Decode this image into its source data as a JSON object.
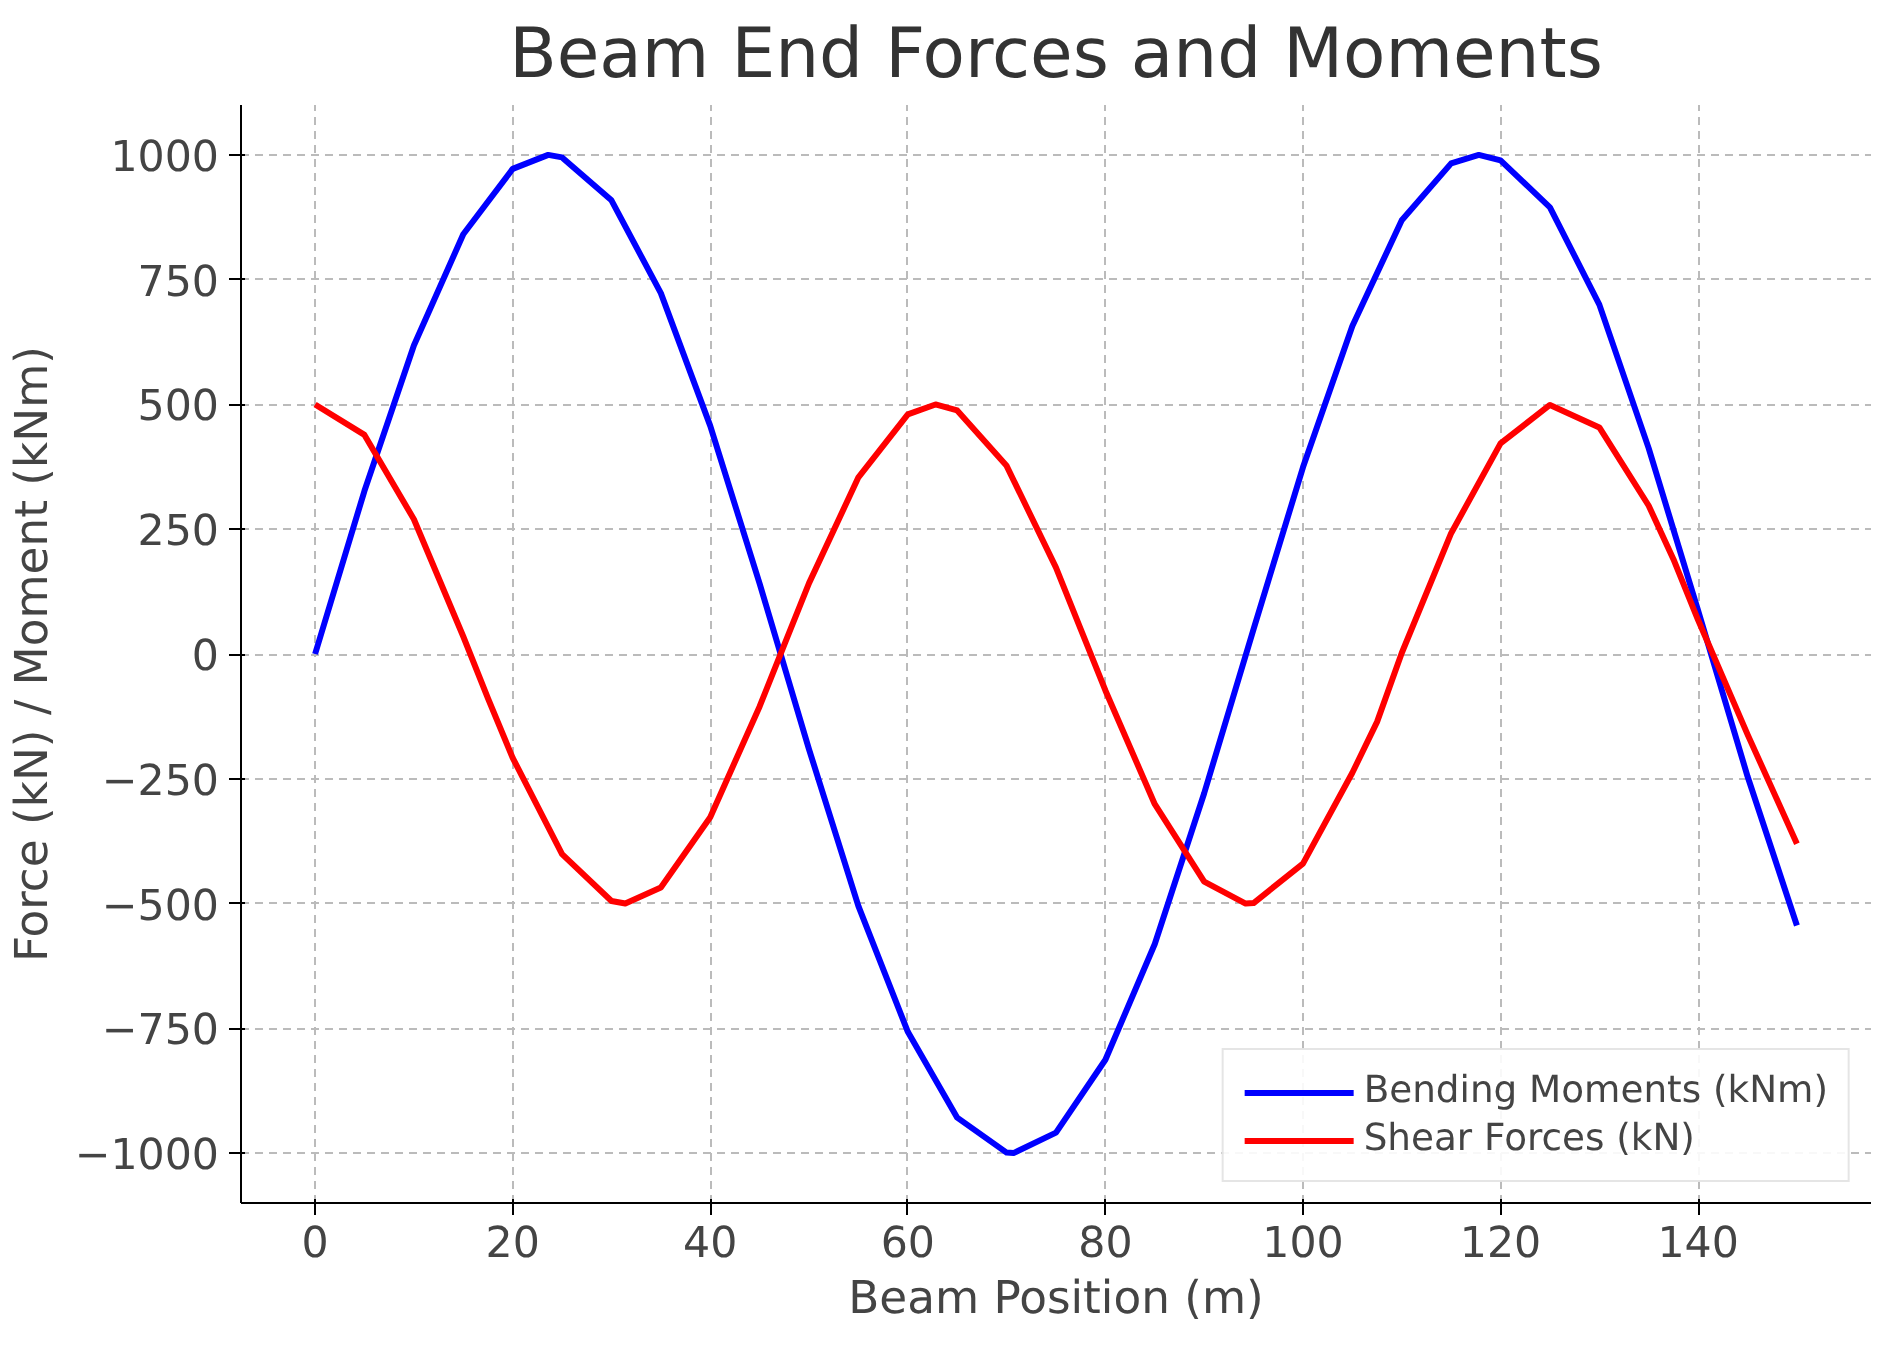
{
  "chart_data": {
    "type": "line",
    "title": "Beam End Forces and Moments",
    "xlabel": "Beam Position (m)",
    "ylabel": "Force (kN) / Moment (kNm)",
    "series": [
      {
        "name": "Bending Moments (kNm)",
        "color": "#0000ff",
        "x": [
          0,
          5,
          10,
          15,
          20,
          23.6,
          25,
          30,
          35,
          40,
          45,
          50,
          55,
          60,
          65,
          70,
          70.7,
          75,
          80,
          85,
          90,
          95,
          100,
          105,
          110,
          115,
          117.8,
          120,
          125,
          130,
          135,
          140,
          145,
          150
        ],
        "values": [
          0,
          327,
          618,
          841,
          972,
          1000,
          995,
          909,
          723,
          457,
          141,
          -191,
          -505,
          -757,
          -929,
          -999,
          -1000,
          -959,
          -813,
          -581,
          -279,
          50,
          374,
          657,
          869,
          983,
          1000,
          989,
          895,
          700,
          412,
          87,
          -245,
          -544
        ]
      },
      {
        "name": "Shear Forces (kN)",
        "color": "#ff0000",
        "x": [
          0,
          5,
          10,
          15,
          17.5,
          20,
          25,
          30,
          31.4,
          35,
          40,
          45,
          47.5,
          50,
          55,
          60,
          62.8,
          65,
          70,
          75,
          77.5,
          80,
          85,
          90,
          94.2,
          95,
          100,
          105,
          107.5,
          110,
          115,
          120,
          125,
          130,
          135,
          137.5,
          140,
          145,
          150
        ],
        "values": [
          500,
          439,
          270,
          35,
          -89,
          -208,
          -401,
          -495,
          -500,
          -468,
          -327,
          -105,
          19,
          142,
          354,
          480,
          500,
          488,
          377,
          173,
          50,
          -73,
          -301,
          -456,
          -500,
          -499,
          -420,
          -238,
          -136,
          2,
          242,
          422,
          499,
          454,
          297,
          190,
          68,
          -161,
          -380
        ]
      }
    ],
    "xlim": [
      -7.5,
      157.5
    ],
    "ylim": [
      -1100,
      1100
    ],
    "xticks": [
      0,
      20,
      40,
      60,
      80,
      100,
      120,
      140
    ],
    "yticks": [
      -1000,
      -750,
      -500,
      -250,
      0,
      250,
      500,
      750,
      1000
    ],
    "grid": true,
    "legend": "bottom right",
    "line_style": "solid",
    "marker": "none"
  }
}
